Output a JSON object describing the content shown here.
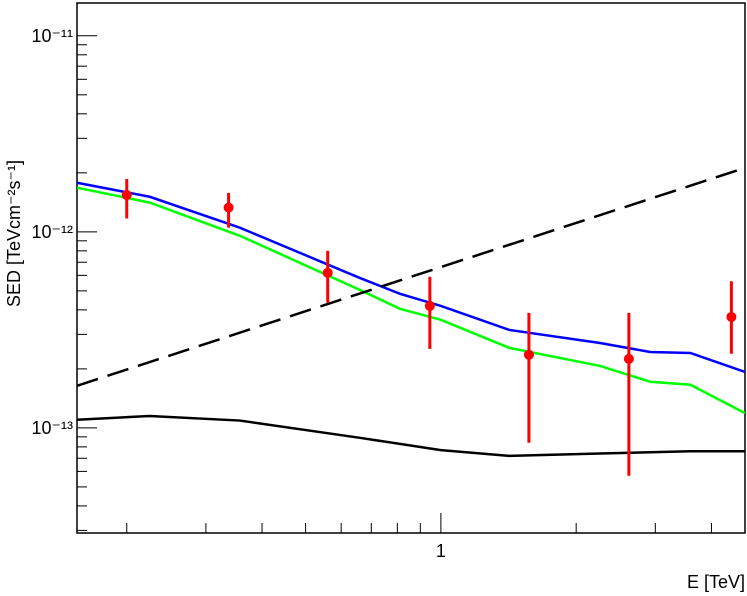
{
  "chart_data": {
    "type": "sed",
    "x_label": "E [TeV]",
    "y_label": "SED [TeVcm⁻²s⁻¹]",
    "xlog": true,
    "ylog": true,
    "xlim": [
      0.155,
      4.75
    ],
    "ylim": [
      2.91e-14,
      1.47e-11
    ],
    "xticks": [
      1
    ],
    "xminor": [
      0.2,
      0.3,
      0.4,
      0.5,
      0.6,
      0.7,
      0.8,
      0.9,
      2,
      3,
      4
    ],
    "yticks": [
      {
        "value": 1e-13,
        "label": "10⁻¹³"
      },
      {
        "value": 1e-12,
        "label": "10⁻¹²"
      },
      {
        "value": 1e-11,
        "label": "10⁻¹¹"
      }
    ],
    "yminor": [
      3e-14,
      4e-14,
      5e-14,
      6e-14,
      7e-14,
      8e-14,
      9e-14,
      2e-13,
      3e-13,
      4e-13,
      5e-13,
      6e-13,
      7e-13,
      8e-13,
      9e-13,
      2e-12,
      3e-12,
      4e-12,
      5e-12,
      6e-12,
      7e-12,
      8e-12,
      9e-12
    ],
    "curves": [
      {
        "color": "#0000ff",
        "dash": false,
        "x": [
          0.155,
          0.225,
          0.357,
          0.66,
          0.811,
          1,
          1.42,
          2.26,
          2.92,
          3.59,
          4.75
        ],
        "values": [
          1.78e-12,
          1.51e-12,
          1.05e-12,
          5.82e-13,
          4.83e-13,
          4.19e-13,
          3.16e-13,
          2.71e-13,
          2.44e-13,
          2.41e-13,
          1.93e-13
        ]
      },
      {
        "color": "#00ff00",
        "dash": false,
        "x": [
          0.155,
          0.225,
          0.357,
          0.66,
          0.811,
          1,
          1.42,
          2.26,
          2.92,
          3.59,
          4.75
        ],
        "values": [
          1.68e-12,
          1.41e-12,
          9.55e-13,
          5.06e-13,
          4.05e-13,
          3.56e-13,
          2.56e-13,
          2.07e-13,
          1.72e-13,
          1.66e-13,
          1.19e-13
        ]
      },
      {
        "color": "#000000",
        "dash": true,
        "x": [
          0.155,
          4.75
        ],
        "values": [
          1.64e-13,
          2.12e-12
        ]
      },
      {
        "color": "#000000",
        "dash": false,
        "x": [
          0.155,
          0.225,
          0.357,
          0.66,
          1,
          1.42,
          2.26,
          3.59,
          4.75
        ],
        "values": [
          1.1e-13,
          1.15e-13,
          1.09e-13,
          8.9e-14,
          7.7e-14,
          7.2e-14,
          7.4e-14,
          7.6e-14,
          7.6e-14
        ]
      }
    ],
    "points": {
      "color": "#ff0000",
      "x": [
        0.2,
        0.337,
        0.56,
        0.945,
        1.57,
        2.62,
        4.43
      ],
      "values": [
        1.54e-12,
        1.33e-12,
        6.18e-13,
        4.19e-13,
        2.36e-13,
        2.25e-13,
        3.68e-13
      ],
      "y_high": [
        1.86e-12,
        1.58e-12,
        8e-13,
        5.9e-13,
        3.86e-13,
        3.86e-13,
        5.6e-13
      ],
      "y_low": [
        1.17e-12,
        1.05e-12,
        4.35e-13,
        2.53e-13,
        8.4e-14,
        5.7e-14,
        2.39e-13
      ]
    }
  }
}
